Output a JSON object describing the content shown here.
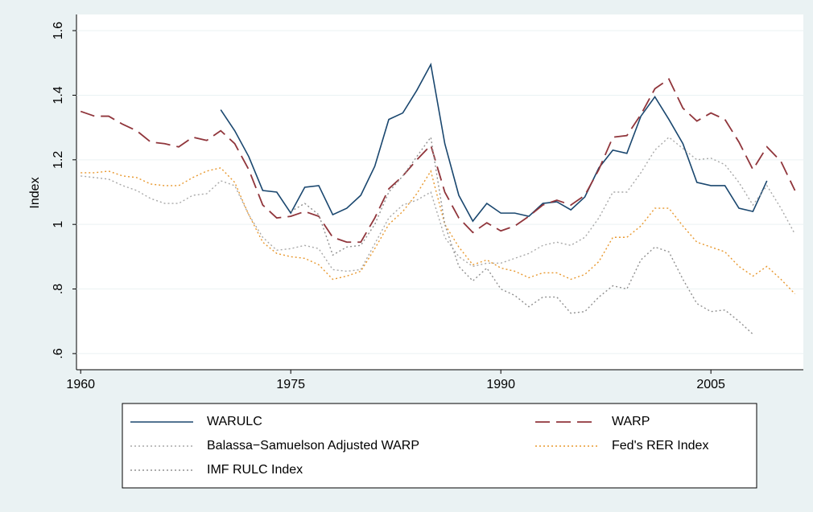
{
  "chart_data": {
    "type": "line",
    "y_label": "Index",
    "x": [
      1960,
      1961,
      1962,
      1963,
      1964,
      1965,
      1966,
      1967,
      1968,
      1969,
      1970,
      1971,
      1972,
      1973,
      1974,
      1975,
      1976,
      1977,
      1978,
      1979,
      1980,
      1981,
      1982,
      1983,
      1984,
      1985,
      1986,
      1987,
      1988,
      1989,
      1990,
      1991,
      1992,
      1993,
      1994,
      1995,
      1996,
      1997,
      1998,
      1999,
      2000,
      2001,
      2002,
      2003,
      2004,
      2005,
      2006,
      2007,
      2008,
      2009,
      2010,
      2011
    ],
    "xlim": [
      1959.7,
      2011.6
    ],
    "xticks": [
      1960,
      1975,
      1990,
      2005
    ],
    "ylim": [
      0.55,
      1.65
    ],
    "yticks": [
      {
        "value": 0.6,
        "label": ".6"
      },
      {
        "value": 0.8,
        "label": ".8"
      },
      1,
      1.2,
      1.4,
      1.6
    ],
    "grid": true,
    "series": [
      {
        "name": "WARULC",
        "color": "#1a476f",
        "style": "solid",
        "values": [
          null,
          null,
          null,
          null,
          null,
          null,
          null,
          null,
          null,
          null,
          1.355,
          1.29,
          1.21,
          1.105,
          1.1,
          1.035,
          1.115,
          1.12,
          1.03,
          1.05,
          1.09,
          1.18,
          1.325,
          1.345,
          1.415,
          1.495,
          1.25,
          1.09,
          1.01,
          1.065,
          1.035,
          1.035,
          1.025,
          1.065,
          1.07,
          1.045,
          1.085,
          1.175,
          1.23,
          1.22,
          1.335,
          1.395,
          1.325,
          1.25,
          1.13,
          1.12,
          1.12,
          1.05,
          1.04,
          1.135,
          null,
          null
        ]
      },
      {
        "name": "WARP",
        "color": "#90353b",
        "style": "dashed",
        "values": [
          1.35,
          1.335,
          1.335,
          1.31,
          1.29,
          1.255,
          1.25,
          1.24,
          1.27,
          1.26,
          1.29,
          1.25,
          1.17,
          1.06,
          1.02,
          1.025,
          1.04,
          1.025,
          0.96,
          0.945,
          0.945,
          1.02,
          1.11,
          1.15,
          1.2,
          1.245,
          1.1,
          1.02,
          0.975,
          1.005,
          0.98,
          0.995,
          1.025,
          1.06,
          1.075,
          1.06,
          1.09,
          1.17,
          1.27,
          1.275,
          1.34,
          1.42,
          1.45,
          1.36,
          1.32,
          1.345,
          1.325,
          1.255,
          1.17,
          1.24,
          1.195,
          1.105
        ]
      },
      {
        "name": "Balassa−Samuelson Adjusted WARP",
        "color": "#a8a8a8",
        "style": "dotted",
        "values": [
          1.15,
          1.145,
          1.14,
          1.12,
          1.105,
          1.08,
          1.065,
          1.065,
          1.09,
          1.095,
          1.135,
          1.12,
          1.03,
          0.96,
          0.92,
          0.925,
          0.935,
          0.925,
          0.86,
          0.855,
          0.86,
          0.94,
          1.02,
          1.06,
          1.075,
          1.1,
          0.96,
          0.9,
          0.87,
          0.88,
          0.88,
          0.895,
          0.91,
          0.935,
          0.945,
          0.935,
          0.96,
          1.02,
          1.1,
          1.1,
          1.16,
          1.23,
          1.27,
          1.235,
          1.2,
          1.205,
          1.185,
          1.13,
          1.06,
          1.12,
          1.05,
          0.97
        ]
      },
      {
        "name": "Fed's RER Index",
        "color": "#e8982e",
        "style": "dotted",
        "values": [
          1.16,
          1.16,
          1.165,
          1.15,
          1.145,
          1.125,
          1.12,
          1.12,
          1.145,
          1.165,
          1.175,
          1.13,
          1.03,
          0.945,
          0.91,
          0.9,
          0.895,
          0.875,
          0.83,
          0.84,
          0.855,
          0.925,
          1.0,
          1.04,
          1.095,
          1.165,
          1.0,
          0.93,
          0.875,
          0.89,
          0.865,
          0.855,
          0.835,
          0.85,
          0.85,
          0.83,
          0.845,
          0.885,
          0.96,
          0.96,
          0.995,
          1.05,
          1.05,
          0.995,
          0.945,
          0.93,
          0.915,
          0.87,
          0.84,
          0.87,
          0.83,
          0.785
        ]
      },
      {
        "name": "IMF RULC Index",
        "color": "#909090",
        "style": "dotted",
        "values": [
          null,
          null,
          null,
          null,
          null,
          null,
          null,
          null,
          null,
          null,
          null,
          null,
          null,
          null,
          null,
          1.04,
          1.065,
          1.03,
          0.905,
          0.93,
          0.935,
          1.0,
          1.1,
          1.15,
          1.21,
          1.27,
          1.0,
          0.87,
          0.825,
          0.865,
          0.8,
          0.78,
          0.745,
          0.775,
          0.775,
          0.725,
          0.73,
          0.775,
          0.81,
          0.8,
          0.89,
          0.93,
          0.915,
          0.83,
          0.755,
          0.73,
          0.735,
          0.7,
          0.66,
          null,
          null,
          null
        ]
      }
    ]
  }
}
